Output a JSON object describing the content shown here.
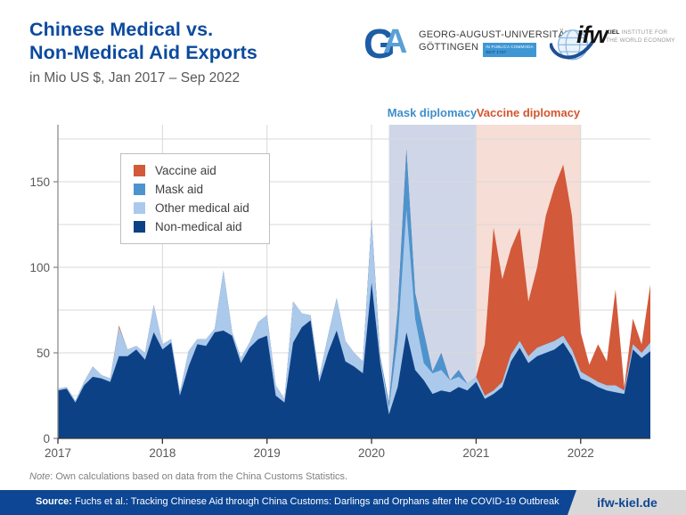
{
  "header": {
    "title_line1": "Chinese Medical vs.",
    "title_line2": "Non-Medical Aid Exports",
    "subtitle": "in Mio US $, Jan 2017 – Sep 2022",
    "title_color": "#0b4a9e"
  },
  "logos": {
    "goettingen": {
      "monogram_g": "G",
      "monogram_a": "A",
      "line1": "GEORG-AUGUST-UNIVERSITÄT",
      "line2": "GÖTTINGEN",
      "tagline1": "IN PUBLICA COMMODA",
      "tagline2": "SEIT 1737"
    },
    "ifw": {
      "wordmark": "ifw",
      "line1_bold": "KIEL",
      "line1_rest": " INSTITUTE FOR",
      "line2": "THE WORLD ECONOMY"
    }
  },
  "annotations": {
    "mask": {
      "label": "Mask diplomacy",
      "color": "#3e8ecb"
    },
    "vaccine": {
      "label": "Vaccine diplomacy",
      "color": "#d4552e"
    }
  },
  "legend": {
    "items": [
      {
        "label": "Vaccine aid",
        "color": "#d2593a"
      },
      {
        "label": "Mask aid",
        "color": "#4d94ce"
      },
      {
        "label": "Other medical aid",
        "color": "#abc9ea"
      },
      {
        "label": "Non-medical aid",
        "color": "#0d4186"
      }
    ]
  },
  "chart_data": {
    "type": "area",
    "stacked": true,
    "x_unit": "month",
    "x_start": "2017-01",
    "x_end": "2022-09",
    "n_points": 69,
    "ylabel": "",
    "xlabel": "",
    "ylim": [
      0,
      183
    ],
    "grid_step": 25,
    "y_ticks": [
      0,
      50,
      100,
      150
    ],
    "x_ticks": [
      {
        "label": "2017",
        "month_index": 0
      },
      {
        "label": "2018",
        "month_index": 12
      },
      {
        "label": "2019",
        "month_index": 24
      },
      {
        "label": "2020",
        "month_index": 36
      },
      {
        "label": "2021",
        "month_index": 48
      },
      {
        "label": "2022",
        "month_index": 60
      }
    ],
    "bands": [
      {
        "name": "Mask diplomacy",
        "from_index": 38,
        "to_index": 48,
        "color": "#cfd6e8"
      },
      {
        "name": "Vaccine diplomacy",
        "from_index": 48,
        "to_index": 60,
        "color": "#f6ddd6"
      }
    ],
    "series": [
      {
        "name": "Non-medical aid",
        "color": "#0d4186",
        "values": [
          28,
          29,
          21,
          31,
          36,
          35,
          33,
          48,
          48,
          52,
          46,
          62,
          52,
          56,
          25,
          42,
          55,
          54,
          62,
          63,
          60,
          44,
          53,
          58,
          60,
          25,
          21,
          56,
          65,
          69,
          33,
          50,
          63,
          45,
          42,
          38,
          91,
          44,
          14,
          30,
          62,
          40,
          34,
          26,
          28,
          27,
          30,
          28,
          33,
          23,
          26,
          30,
          45,
          53,
          44,
          48,
          50,
          52,
          56,
          48,
          35,
          33,
          30,
          28,
          27,
          26,
          52,
          47,
          51
        ]
      },
      {
        "name": "Other medical aid",
        "color": "#abc9ea",
        "values": [
          1,
          1,
          1,
          2,
          6,
          2,
          2,
          17,
          4,
          2,
          4,
          16,
          3,
          2,
          2,
          9,
          3,
          4,
          2,
          35,
          2,
          3,
          3,
          10,
          12,
          6,
          2,
          24,
          8,
          3,
          3,
          10,
          19,
          12,
          8,
          7,
          36,
          3,
          4,
          28,
          72,
          30,
          10,
          12,
          12,
          7,
          6,
          4,
          3,
          2,
          2,
          3,
          4,
          4,
          4,
          5,
          5,
          5,
          4,
          4,
          4,
          3,
          3,
          3,
          4,
          2,
          3,
          3,
          5
        ]
      },
      {
        "name": "Mask aid",
        "color": "#4d94ce",
        "values": [
          0,
          0,
          0,
          0,
          0,
          0,
          0,
          0,
          0,
          0,
          0,
          0,
          0,
          0,
          0,
          0,
          0,
          0,
          0,
          0,
          0,
          0,
          0,
          0,
          0,
          0,
          0,
          0,
          0,
          0,
          0,
          0,
          0,
          0,
          0,
          0,
          1,
          1,
          3,
          17,
          35,
          15,
          18,
          1,
          10,
          0,
          4,
          0,
          0,
          0,
          0,
          0,
          0,
          0,
          0,
          0,
          0,
          0,
          0,
          0,
          0,
          0,
          0,
          0,
          0,
          0,
          0,
          0,
          0
        ]
      },
      {
        "name": "Vaccine aid",
        "color": "#d2593a",
        "values": [
          0,
          0,
          0,
          0,
          0,
          0,
          0,
          1,
          0,
          0,
          0,
          0,
          0,
          0,
          0,
          0,
          0,
          0,
          0,
          0,
          0,
          0,
          0,
          0,
          0,
          0,
          0,
          0,
          0,
          0,
          0,
          0,
          0,
          0,
          0,
          0,
          0,
          0,
          0,
          0,
          0,
          0,
          0,
          0,
          0,
          0,
          0,
          0,
          0,
          30,
          95,
          60,
          62,
          66,
          32,
          47,
          75,
          90,
          100,
          78,
          23,
          7,
          22,
          14,
          56,
          2,
          15,
          5,
          34
        ]
      }
    ]
  },
  "footer": {
    "note_prefix": "Note",
    "note_text": ": Own calculations based on data from the China Customs Statistics.",
    "source_prefix": "Source:",
    "source_text": " Fuchs et al.: Tracking Chinese Aid through China Customs: Darlings and Orphans after the COVID-19 Outbreak",
    "site": "ifw-kiel.de",
    "bar_color": "#0d4694"
  }
}
